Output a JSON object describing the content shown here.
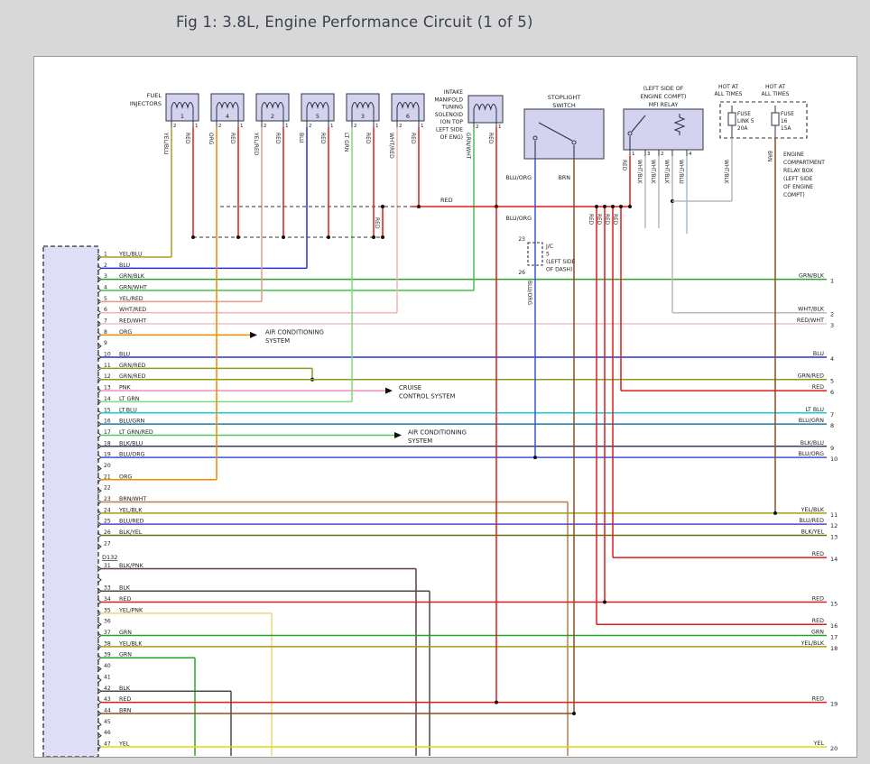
{
  "title": "Fig 1: 3.8L, Engine Performance Circuit (1 of 5)",
  "palette": {
    "page_bg": "#d8d8d8",
    "diagram_bg": "#ffffff",
    "diagram_border": "#9a9a9a",
    "title_color": "#39414d",
    "component_fill": "#d3d3ef",
    "component_stroke": "#444455",
    "connector_fill": "#dedef6",
    "line_dark": "#333333"
  },
  "wire_colors": {
    "YEL/BLU": "#a6a023",
    "BLU": "#2b2bd6",
    "GRN/BLK": "#2e9e2e",
    "GRN/WHT": "#49c049",
    "YEL/RED": "#e09a8f",
    "WHT/RED": "#f0b4b4",
    "RED/WHT": "#f0c2c2",
    "ORG": "#f08a00",
    "RED": "#e01b1b",
    "GRN/RED": "#8f9b1e",
    "PNK": "#f08fc0",
    "LT GRN": "#7ade7a",
    "LT.BLU": "#12cfcf",
    "LT BLU": "#12cfcf",
    "BLU/GRN": "#1a7f9e",
    "LT GRN/RED": "#57c857",
    "BLK/BLU": "#3c3c5e",
    "BLU/ORG": "#3c55d6",
    "YEL/BLK": "#a3a300",
    "BLU/RED": "#5940c9",
    "BLK/YEL": "#6e6e12",
    "BRN/WHT": "#b08050",
    "BLK/PNK": "#5e3a50",
    "BLK": "#4a4a4a",
    "YEL/PNK": "#ebd77f",
    "GRN": "#23a523",
    "BRN": "#8a4f23",
    "YEL": "#e8d800",
    "WHT/BLK": "#b9b9b9",
    "WHT/BLU": "#a9bbd9"
  },
  "fuel_injectors": {
    "label_lines": [
      "FUEL",
      "INJECTORS"
    ],
    "items": [
      {
        "num": "1",
        "left_pin": "2",
        "right_pin": "1",
        "left_wire": "YEL/BLU",
        "right_wire": "RED"
      },
      {
        "num": "4",
        "left_pin": "2",
        "right_pin": "1",
        "left_wire": "ORG",
        "right_wire": "RED"
      },
      {
        "num": "2",
        "left_pin": "2",
        "right_pin": "1",
        "left_wire": "YEL/RED",
        "right_wire": "RED"
      },
      {
        "num": "5",
        "left_pin": "2",
        "right_pin": "1",
        "left_wire": "BLU",
        "right_wire": "RED"
      },
      {
        "num": "3",
        "left_pin": "2",
        "right_pin": "1",
        "left_wire": "LT GRN",
        "right_wire": "RED"
      },
      {
        "num": "6",
        "left_pin": "2",
        "right_pin": "1",
        "left_wire": "WHT/RED",
        "right_wire": "RED"
      }
    ]
  },
  "solenoid": {
    "label_lines": [
      "INTAKE",
      "MANIFOLD",
      "TUNING",
      "SOLENOID",
      "(ON TOP",
      "LEFT SIDE",
      "OF ENG)"
    ],
    "left_pin": "2",
    "right_pin": "1",
    "left_wire": "GRN/WHT",
    "right_wire": "RED"
  },
  "stoplight_switch": {
    "label_lines": [
      "STOPLIGHT",
      "SWITCH"
    ],
    "left_wire": "BLU/ORG",
    "right_wire": "BRN"
  },
  "junction_jc5": {
    "top_pin": "23",
    "bottom_pin": "26",
    "label_lines": [
      "J/C",
      "5",
      "(LEFT SIDE",
      "OF DASH)"
    ],
    "wire": "BLU/ORG"
  },
  "mfi_relay": {
    "label_lines": [
      "(LEFT SIDE OF",
      "ENGINE COMPT)",
      "MFI RELAY"
    ],
    "pins": [
      {
        "pin": "1",
        "wire": "RED"
      },
      {
        "pin": "3",
        "wire": "WHT/BLK"
      },
      {
        "pin": "2",
        "wire": "WHT/BLK"
      },
      {
        "pin": "",
        "wire": "WHT/BLK"
      },
      {
        "pin": "4",
        "wire": "WHT/BLU"
      }
    ]
  },
  "relay_box": {
    "hot_label_lines": [
      "HOT AT",
      "ALL TIMES"
    ],
    "fuses": [
      {
        "lines": [
          "FUSE",
          "LINK 5",
          "20A"
        ],
        "wire": "WHT/BLK"
      },
      {
        "lines": [
          "FUSE",
          "16",
          "15A"
        ],
        "wire": "BRN"
      }
    ],
    "label_lines": [
      "ENGINE",
      "COMPARTMENT",
      "RELAY BOX",
      "(LEFT SIDE",
      "OF ENGINE",
      "COMPT)"
    ]
  },
  "inline_labels": {
    "red": "RED",
    "blu_org": "BLU/ORG",
    "brn": "BRN",
    "wht_blk": "WHT/BLK"
  },
  "left_connector": {
    "rows": [
      {
        "pin": "1",
        "label": "YEL/BLU"
      },
      {
        "pin": "2",
        "label": "BLU"
      },
      {
        "pin": "3",
        "label": "GRN/BLK"
      },
      {
        "pin": "4",
        "label": "GRN/WHT"
      },
      {
        "pin": "5",
        "label": "YEL/RED"
      },
      {
        "pin": "6",
        "label": "WHT/RED"
      },
      {
        "pin": "7",
        "label": "RED/WHT"
      },
      {
        "pin": "8",
        "label": "ORG"
      },
      {
        "pin": "9",
        "label": ""
      },
      {
        "pin": "10",
        "label": "BLU"
      },
      {
        "pin": "11",
        "label": "GRN/RED"
      },
      {
        "pin": "12",
        "label": "GRN/RED"
      },
      {
        "pin": "13",
        "label": "PNK"
      },
      {
        "pin": "14",
        "label": "LT GRN"
      },
      {
        "pin": "15",
        "label": "LT.BLU"
      },
      {
        "pin": "16",
        "label": "BLU/GRN"
      },
      {
        "pin": "17",
        "label": "LT GRN/RED"
      },
      {
        "pin": "18",
        "label": "BLK/BLU"
      },
      {
        "pin": "19",
        "label": "BLU/ORG"
      },
      {
        "pin": "20",
        "label": ""
      },
      {
        "pin": "21",
        "label": "ORG"
      },
      {
        "pin": "22",
        "label": ""
      },
      {
        "pin": "23",
        "label": "BRN/WHT"
      },
      {
        "pin": "24",
        "label": "YEL/BLK"
      },
      {
        "pin": "25",
        "label": "BLU/RED"
      },
      {
        "pin": "26",
        "label": "BLK/YEL"
      },
      {
        "pin": "27",
        "label": ""
      },
      {
        "pin": "D132",
        "label": ""
      },
      {
        "pin": "31",
        "label": "BLK/PNK"
      },
      {
        "pin": "",
        "label": ""
      },
      {
        "pin": "33",
        "label": "BLK"
      },
      {
        "pin": "34",
        "label": "RED"
      },
      {
        "pin": "35",
        "label": "YEL/PNK"
      },
      {
        "pin": "36",
        "label": ""
      },
      {
        "pin": "37",
        "label": "GRN"
      },
      {
        "pin": "38",
        "label": "YEL/BLK"
      },
      {
        "pin": "39",
        "label": "GRN"
      },
      {
        "pin": "40",
        "label": ""
      },
      {
        "pin": "41",
        "label": ""
      },
      {
        "pin": "42",
        "label": "BLK"
      },
      {
        "pin": "43",
        "label": "RED"
      },
      {
        "pin": "44",
        "label": "BRN"
      },
      {
        "pin": "45",
        "label": ""
      },
      {
        "pin": "46",
        "label": ""
      },
      {
        "pin": "47",
        "label": "YEL"
      }
    ]
  },
  "right_edge": {
    "rows": [
      {
        "label": "GRN/BLK",
        "pin": "1"
      },
      {
        "label": "WHT/BLK",
        "pin": "2"
      },
      {
        "label": "RED/WHT",
        "pin": "3"
      },
      {
        "label": "BLU",
        "pin": "4"
      },
      {
        "label": "GRN/RED",
        "pin": "5"
      },
      {
        "label": "RED",
        "pin": "6"
      },
      {
        "label": "LT BLU",
        "pin": "7"
      },
      {
        "label": "BLU/GRN",
        "pin": "8"
      },
      {
        "label": "BLK/BLU",
        "pin": "9"
      },
      {
        "label": "BLU/ORG",
        "pin": "10"
      },
      {
        "label": "YEL/BLK",
        "pin": "11"
      },
      {
        "label": "BLU/RED",
        "pin": "12"
      },
      {
        "label": "BLK/YEL",
        "pin": "13"
      },
      {
        "label": "RED",
        "pin": "14"
      },
      {
        "label": "RED",
        "pin": "15"
      },
      {
        "label": "RED",
        "pin": "16"
      },
      {
        "label": "GRN",
        "pin": "17"
      },
      {
        "label": "YEL/BLK",
        "pin": "18"
      },
      {
        "label": "RED",
        "pin": "19"
      },
      {
        "label": "YEL",
        "pin": "20"
      }
    ]
  },
  "annotations": [
    {
      "lines": [
        "AIR CONDITIONING",
        "SYSTEM"
      ]
    },
    {
      "lines": [
        "CRUISE",
        "CONTROL SYSTEM"
      ]
    },
    {
      "lines": [
        "AIR CONDITIONING",
        "SYSTEM"
      ]
    }
  ]
}
